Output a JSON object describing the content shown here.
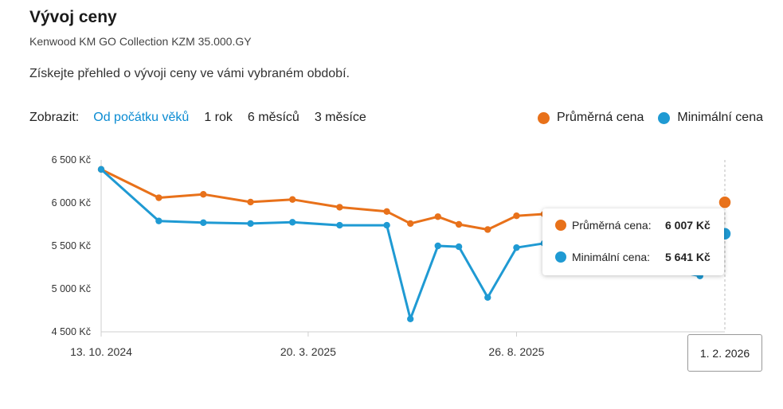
{
  "header": {
    "title": "Vývoj ceny",
    "product": "Kenwood KM GO Collection KZM 35.000.GY",
    "description": "Získejte přehled o vývoji ceny ve vámi vybraném období."
  },
  "controls": {
    "label": "Zobrazit:",
    "ranges": [
      "Od počátku věků",
      "1 rok",
      "6 měsíců",
      "3 měsíce"
    ],
    "active": "Od počátku věků"
  },
  "tooltip": {
    "date": "1. 2. 2026",
    "avg_label": "Průměrná cena:",
    "avg_value": "6 007 Kč",
    "min_label": "Minimální cena:",
    "min_value": "5 641 Kč"
  },
  "chart_data": {
    "type": "line",
    "y_ticks": [
      "6 500 Kč",
      "6 000 Kč",
      "5 500 Kč",
      "5 000 Kč",
      "4 500 Kč"
    ],
    "y_tick_values": [
      6500,
      6000,
      5500,
      5000,
      4500
    ],
    "ylim": [
      4500,
      6500
    ],
    "x_ticks": [
      "13. 10. 2024",
      "20. 3. 2025",
      "26. 8. 2025"
    ],
    "x_tick_dates": [
      "2024-10-13",
      "2025-03-20",
      "2025-08-26"
    ],
    "xlim": [
      "2024-10-13",
      "2026-02-01"
    ],
    "legend_position": "top-right",
    "series": [
      {
        "name": "Průměrná cena",
        "color": "#e8711a",
        "points": [
          [
            "2024-10-13",
            6390
          ],
          [
            "2024-11-26",
            6060
          ],
          [
            "2024-12-30",
            6100
          ],
          [
            "2025-02-04",
            6010
          ],
          [
            "2025-03-08",
            6040
          ],
          [
            "2025-04-13",
            5950
          ],
          [
            "2025-05-19",
            5900
          ],
          [
            "2025-06-06",
            5760
          ],
          [
            "2025-06-27",
            5840
          ],
          [
            "2025-07-13",
            5750
          ],
          [
            "2025-08-04",
            5690
          ],
          [
            "2025-08-26",
            5850
          ],
          [
            "2025-09-16",
            5870
          ],
          [
            "2025-10-14",
            5800
          ],
          [
            "2026-02-01",
            6007
          ]
        ]
      },
      {
        "name": "Minimální cena",
        "color": "#1f9ad3",
        "points": [
          [
            "2024-10-13",
            6390
          ],
          [
            "2024-11-26",
            5790
          ],
          [
            "2024-12-30",
            5770
          ],
          [
            "2025-02-04",
            5760
          ],
          [
            "2025-03-08",
            5775
          ],
          [
            "2025-04-13",
            5740
          ],
          [
            "2025-05-19",
            5740
          ],
          [
            "2025-06-06",
            4650
          ],
          [
            "2025-06-27",
            5500
          ],
          [
            "2025-07-13",
            5490
          ],
          [
            "2025-08-04",
            4900
          ],
          [
            "2025-08-26",
            5480
          ],
          [
            "2025-09-16",
            5530
          ],
          [
            "2025-10-14",
            5420
          ],
          [
            "2026-01-13",
            5150
          ],
          [
            "2026-02-01",
            5641
          ]
        ]
      }
    ]
  }
}
